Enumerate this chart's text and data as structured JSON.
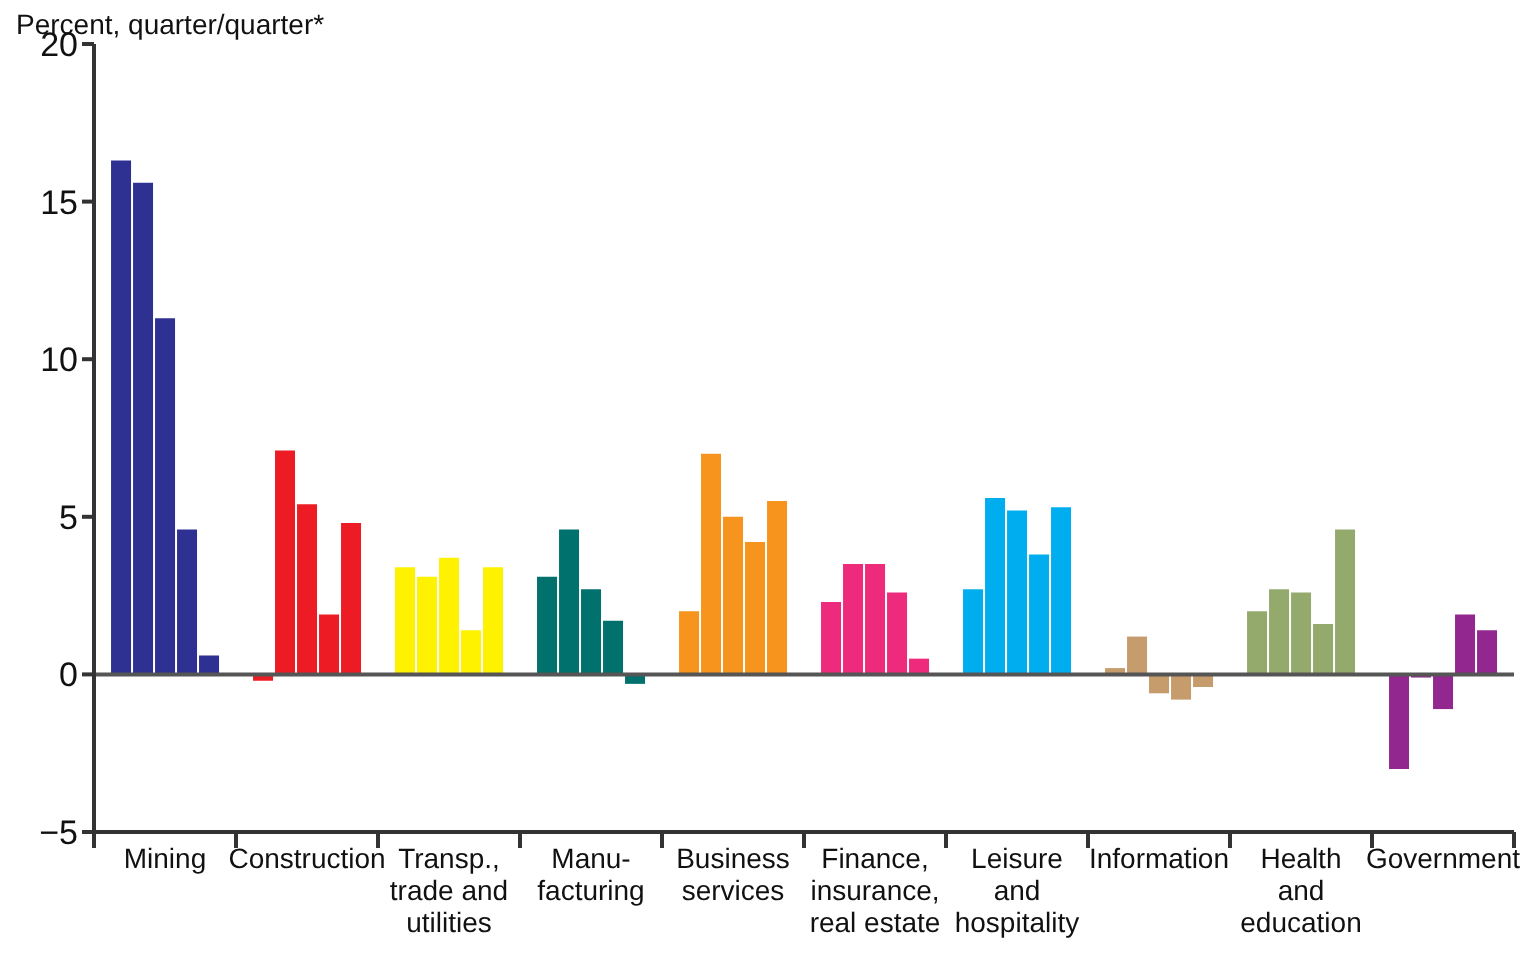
{
  "chart_data": {
    "type": "bar",
    "ylabel": "Percent, quarter/quarter*",
    "categories": [
      "Mining",
      "Construction",
      "Transp.,\ntrade and\nutilities",
      "Manu-\nfacturing",
      "Business\nservices",
      "Finance,\ninsurance,\nreal estate",
      "Leisure\nand\nhospitality",
      "Information",
      "Health\nand\neducation",
      "Government"
    ],
    "series": [
      {
        "colors": [
          "#2e3192",
          "#ed1c24",
          "#fff200",
          "#00716d",
          "#f7941d",
          "#ed2a7b",
          "#00aeef",
          "#c69c6d",
          "#93aa6c",
          "#92278f"
        ],
        "values": [
          16.3,
          -0.2,
          3.4,
          3.1,
          2.0,
          2.3,
          2.7,
          0.2,
          2.0,
          -3.0
        ]
      },
      {
        "colors": [
          "#2e3192",
          "#ed1c24",
          "#fff200",
          "#00716d",
          "#f7941d",
          "#ed2a7b",
          "#00aeef",
          "#c69c6d",
          "#93aa6c",
          "#92278f"
        ],
        "values": [
          15.6,
          7.1,
          3.1,
          4.6,
          7.0,
          3.5,
          5.6,
          1.2,
          2.7,
          -0.1
        ]
      },
      {
        "colors": [
          "#2e3192",
          "#ed1c24",
          "#fff200",
          "#00716d",
          "#f7941d",
          "#ed2a7b",
          "#00aeef",
          "#c69c6d",
          "#93aa6c",
          "#92278f"
        ],
        "values": [
          11.3,
          5.4,
          3.7,
          2.7,
          5.0,
          3.5,
          5.2,
          -0.6,
          2.6,
          -1.1
        ]
      },
      {
        "colors": [
          "#2e3192",
          "#ed1c24",
          "#fff200",
          "#00716d",
          "#f7941d",
          "#ed2a7b",
          "#00aeef",
          "#c69c6d",
          "#93aa6c",
          "#92278f"
        ],
        "values": [
          4.6,
          1.9,
          1.4,
          1.7,
          4.2,
          2.6,
          3.8,
          -0.8,
          1.6,
          1.9
        ]
      },
      {
        "colors": [
          "#2e3192",
          "#ed1c24",
          "#fff200",
          "#00716d",
          "#f7941d",
          "#ed2a7b",
          "#00aeef",
          "#c69c6d",
          "#93aa6c",
          "#92278f"
        ],
        "values": [
          0.6,
          4.8,
          3.4,
          -0.3,
          5.5,
          0.5,
          5.3,
          -0.4,
          4.6,
          1.4
        ]
      }
    ],
    "ylim": [
      -5,
      20
    ],
    "yticks": [
      -5,
      0,
      5,
      10,
      15,
      20
    ],
    "grid": false,
    "legend": false,
    "ref_lines": [
      {
        "axis": "y",
        "value": 0,
        "color": "#555555"
      }
    ]
  }
}
